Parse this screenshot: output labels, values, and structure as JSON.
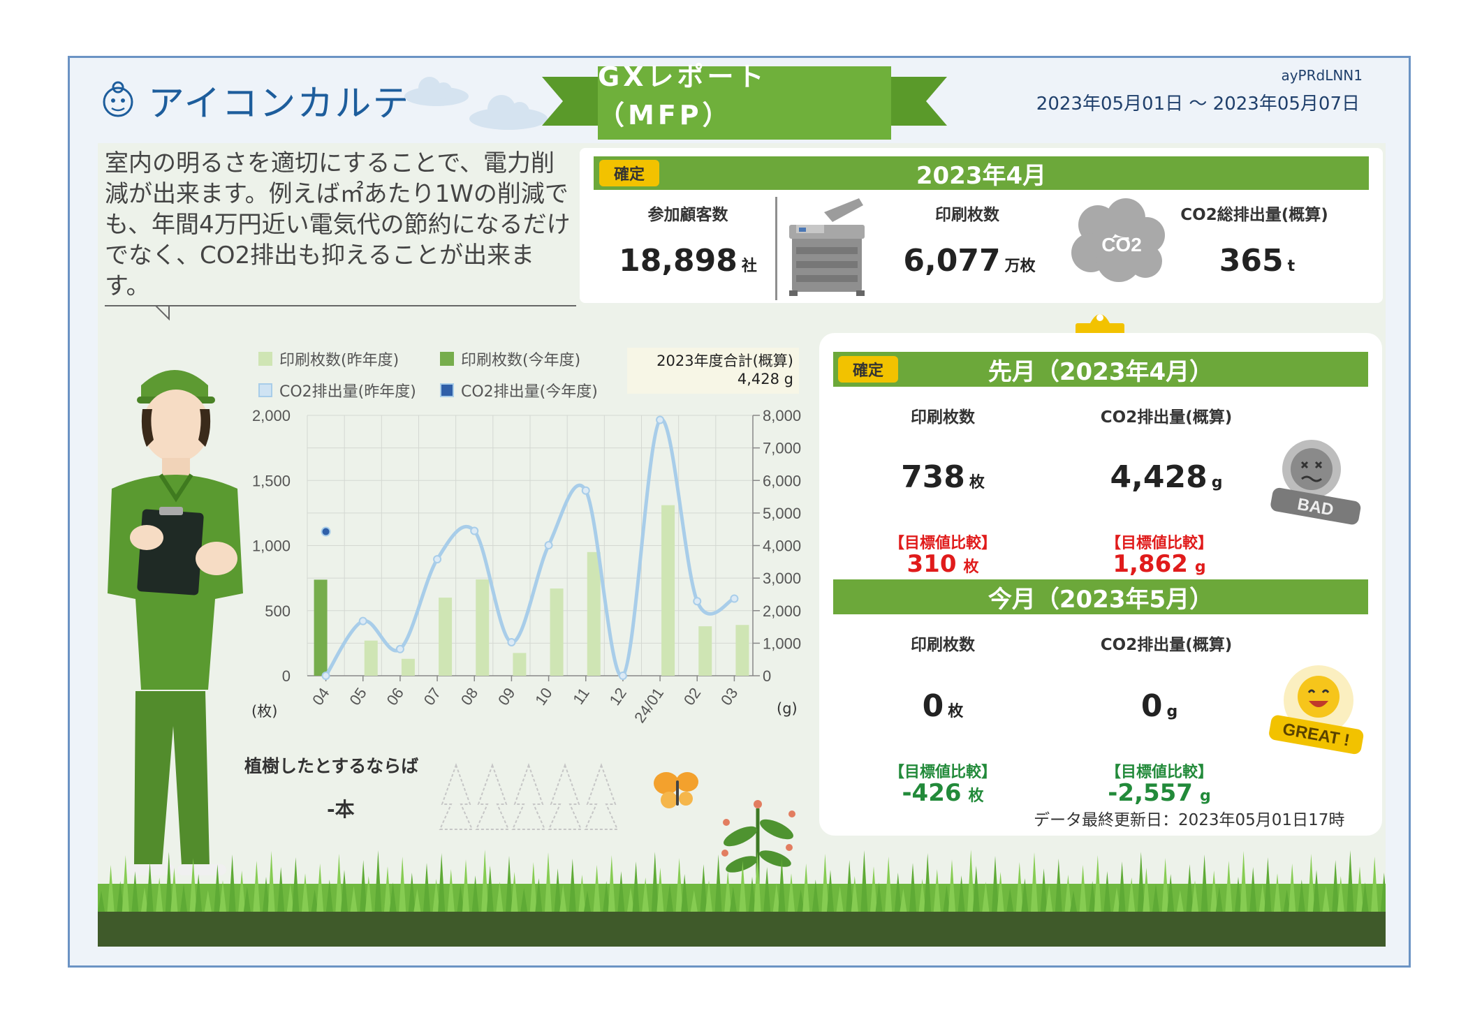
{
  "header": {
    "app_name": "アイコンカルテ",
    "report_title": "GXレポート（MFP）",
    "report_id": "ayPRdLNN1",
    "period": "2023年05月01日 〜 2023年05月07日"
  },
  "speech": "室内の明るさを適切にすることで、電力削減が出来ます。例えば㎡あたり1Wの削減でも、年間4万円近い電気代の節約になるだけでなく、CO2排出も抑えることが出来ます。",
  "summary": {
    "badge": "確定",
    "month": "2023年4月",
    "customers": {
      "label": "参加顧客数",
      "value": "18,898",
      "unit": "社"
    },
    "prints": {
      "label": "印刷枚数",
      "value": "6,077",
      "unit": "万枚"
    },
    "co2": {
      "label": "CO2総排出量(概算)",
      "value": "365",
      "unit": "t"
    },
    "co2_icon_text": "CO2"
  },
  "last_month": {
    "badge": "確定",
    "title": "先月（2023年4月）",
    "prints_label": "印刷枚数",
    "prints_value": "738",
    "prints_unit": "枚",
    "co2_label": "CO2排出量(概算)",
    "co2_value": "4,428",
    "co2_unit": "g",
    "compare_label": "【目標値比較】",
    "prints_diff": "310",
    "prints_diff_unit": "枚",
    "co2_diff": "1,862",
    "co2_diff_unit": "g",
    "status": "BAD"
  },
  "this_month": {
    "title": "今月（2023年5月）",
    "prints_label": "印刷枚数",
    "prints_value": "0",
    "prints_unit": "枚",
    "co2_label": "CO2排出量(概算)",
    "co2_value": "0",
    "co2_unit": "g",
    "compare_label": "【目標値比較】",
    "prints_diff": "-426",
    "prints_diff_unit": "枚",
    "co2_diff": "-2,557",
    "co2_diff_unit": "g",
    "status": "GREAT !"
  },
  "updated": "データ最終更新日：2023年05月01日17時",
  "trees": {
    "label": "植樹したとするならば",
    "count": "-",
    "unit": "本"
  },
  "colors": {
    "green": "#6ca83a",
    "dark_green": "#3f5a2a",
    "bar_prev": "#cfe5b4",
    "bar_curr": "#76ad4c",
    "line_prev": "#a8cde9",
    "line_curr": "#2f5fa8",
    "red": "#e01b1b",
    "badge": "#f2c200",
    "brand_blue": "#1d5d9c"
  },
  "chart_data": {
    "type": "bar",
    "categories": [
      "04",
      "05",
      "06",
      "07",
      "08",
      "09",
      "10",
      "11",
      "12",
      "24/01",
      "02",
      "03"
    ],
    "series": [
      {
        "name": "印刷枚数(昨年度)",
        "type": "bar",
        "axis": "left",
        "values": [
          0,
          270,
          130,
          600,
          740,
          175,
          670,
          950,
          0,
          1310,
          380,
          390
        ]
      },
      {
        "name": "印刷枚数(今年度)",
        "type": "bar",
        "axis": "left",
        "values": [
          738,
          null,
          null,
          null,
          null,
          null,
          null,
          null,
          null,
          null,
          null,
          null
        ]
      },
      {
        "name": "CO2排出量(昨年度)",
        "type": "line",
        "axis": "right",
        "values": [
          0,
          1680,
          820,
          3580,
          4450,
          1030,
          4010,
          5690,
          0,
          7860,
          2290,
          2370
        ]
      },
      {
        "name": "CO2排出量(今年度)",
        "type": "line",
        "axis": "right",
        "values": [
          4428,
          null,
          null,
          null,
          null,
          null,
          null,
          null,
          null,
          null,
          null,
          null
        ]
      }
    ],
    "y_left": {
      "ticks": [
        "0",
        "500",
        "1,000",
        "1,500",
        "2,000"
      ],
      "min": 0,
      "max": 2000,
      "unit": "(枚)"
    },
    "y_right": {
      "ticks": [
        "0",
        "1,000",
        "2,000",
        "3,000",
        "4,000",
        "5,000",
        "6,000",
        "7,000",
        "8,000"
      ],
      "min": 0,
      "max": 8000,
      "unit": "(g)"
    },
    "total_label": "2023年度合計(概算)",
    "total_value": "4,428 g",
    "grid": true,
    "legend": "top"
  }
}
